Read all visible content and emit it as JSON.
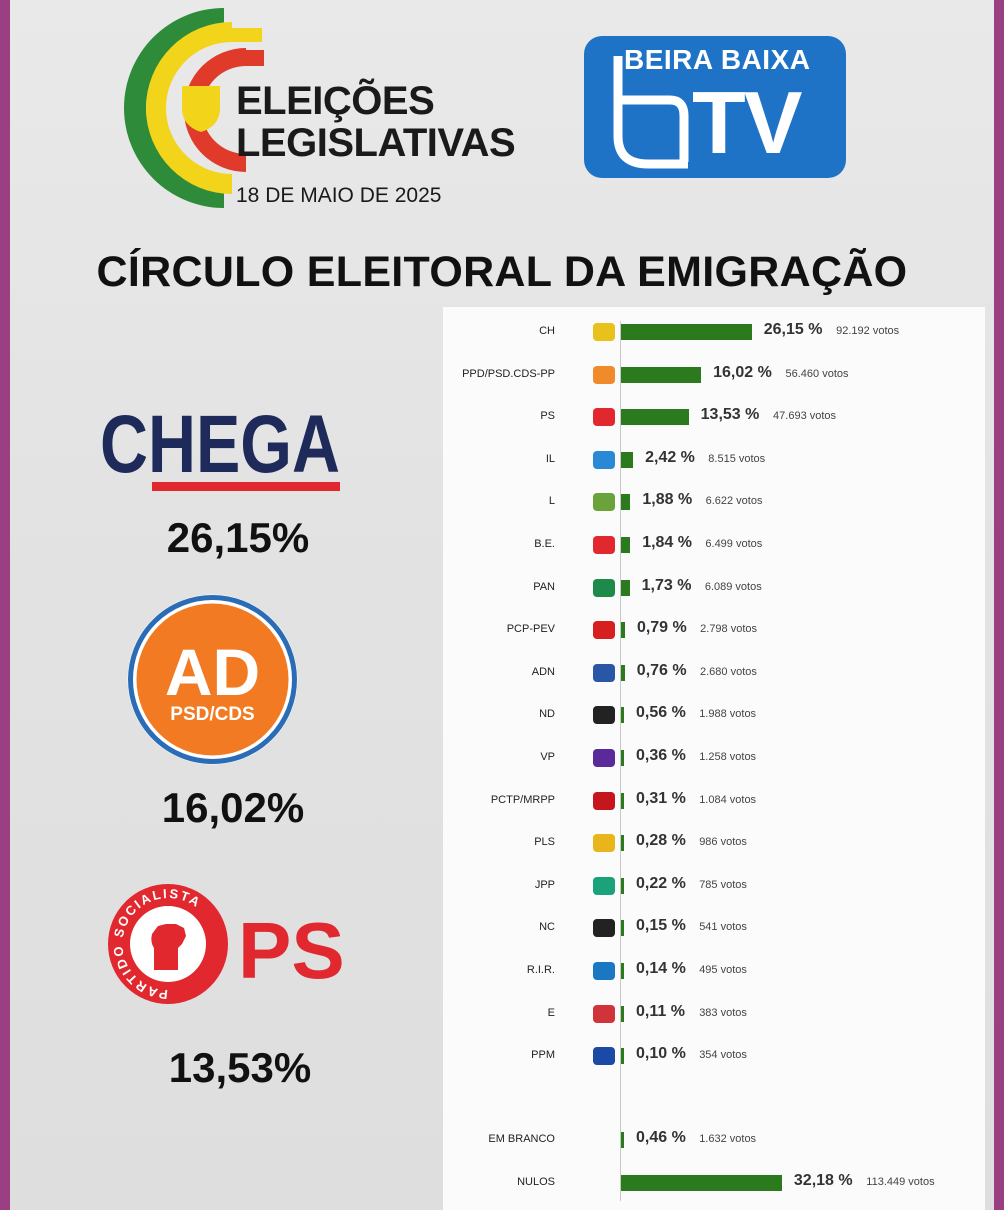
{
  "header": {
    "election_title_line1": "ELEIÇÕES",
    "election_title_line2": "LEGISLATIVAS",
    "election_date": "18 DE MAIO DE 2025",
    "tv_top": "BEIRA BAIXA",
    "tv_big": "TV"
  },
  "heading": "CÍRCULO ELEITORAL DA EMIGRAÇÃO",
  "highlights": [
    {
      "name": "CHEGA",
      "pct": "26,15%"
    },
    {
      "name": "AD",
      "sub": "PSD/CDS",
      "pct": "16,02%"
    },
    {
      "name": "PS",
      "ring_text": "PARTIDO SOCIALISTA",
      "pct": "13,53%"
    }
  ],
  "chart_data": {
    "type": "bar",
    "orientation": "horizontal",
    "categories": [
      "CH",
      "PPD/PSD.CDS-PP",
      "PS",
      "IL",
      "L",
      "B.E.",
      "PAN",
      "PCP-PEV",
      "ADN",
      "ND",
      "VP",
      "PCTP/MRPP",
      "PLS",
      "JPP",
      "NC",
      "R.I.R.",
      "E",
      "PPM",
      "EM BRANCO",
      "NULOS"
    ],
    "values": [
      26.15,
      16.02,
      13.53,
      2.42,
      1.88,
      1.84,
      1.73,
      0.79,
      0.76,
      0.56,
      0.36,
      0.31,
      0.28,
      0.22,
      0.15,
      0.14,
      0.11,
      0.1,
      0.46,
      32.18
    ],
    "value_labels": [
      "26,15 %",
      "16,02 %",
      "13,53 %",
      "2,42 %",
      "1,88 %",
      "1,84 %",
      "1,73 %",
      "0,79 %",
      "0,76 %",
      "0,56 %",
      "0,36 %",
      "0,31 %",
      "0,28 %",
      "0,22 %",
      "0,15 %",
      "0,14 %",
      "0,11 %",
      "0,10 %",
      "0,46 %",
      "32,18 %"
    ],
    "votes": [
      "92.192 votos",
      "56.460 votos",
      "47.693 votos",
      "8.515 votos",
      "6.622 votos",
      "6.499 votos",
      "6.089 votos",
      "2.798 votos",
      "2.680 votos",
      "1.988 votos",
      "1.258 votos",
      "1.084 votos",
      "986 votos",
      "785 votos",
      "541 votos",
      "495 votos",
      "383 votos",
      "354 votos",
      "1.632 votos",
      "113.449 votos"
    ],
    "bar_color": "#2b7a1e"
  }
}
